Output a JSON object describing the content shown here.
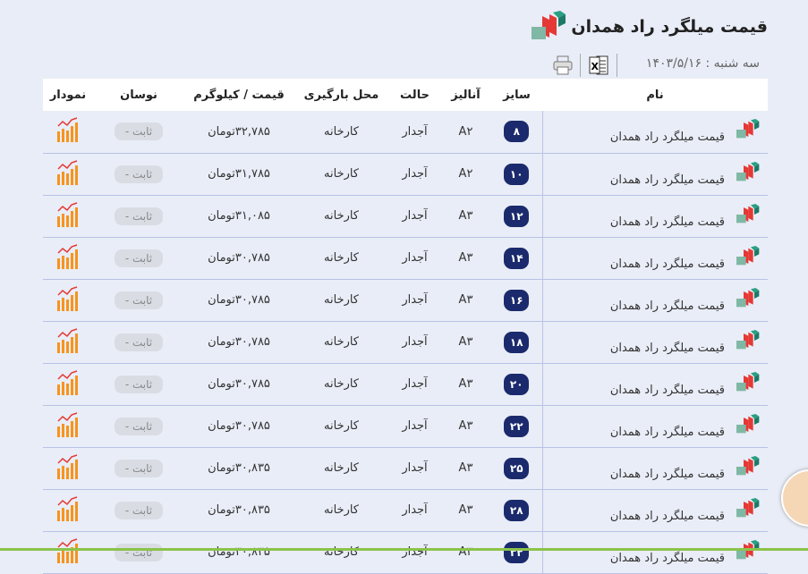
{
  "title": "قیمت میلگرد راد همدان",
  "date": "سه شنبه : ۱۴۰۳/۵/۱۶",
  "icons": {
    "logo": "rebar-logo-icon",
    "excel": "excel-icon",
    "print": "printer-icon",
    "chart": "bar-chart-icon"
  },
  "colors": {
    "size_badge": "#1a2a6c",
    "chart_icon": "#f7931e",
    "logo_red": "#e53935",
    "logo_green": "#1e7a66"
  },
  "headers": {
    "name": "نام",
    "size": "سایز",
    "analysis": "آنالیز",
    "state": "حالت",
    "place": "محل بارگیری",
    "price": "قیمت / کیلوگرم",
    "change": "نوسان",
    "chart": "نمودار"
  },
  "rows": [
    {
      "name": "قیمت میلگرد راد همدان",
      "size": "۸",
      "analysis": "A۲",
      "state": "آجدار",
      "place": "کارخانه",
      "price": "۳۲,۷۸۵تومان",
      "change": "ثابت -"
    },
    {
      "name": "قیمت میلگرد راد همدان",
      "size": "۱۰",
      "analysis": "A۲",
      "state": "آجدار",
      "place": "کارخانه",
      "price": "۳۱,۷۸۵تومان",
      "change": "ثابت -"
    },
    {
      "name": "قیمت میلگرد راد همدان",
      "size": "۱۲",
      "analysis": "A۳",
      "state": "آجدار",
      "place": "کارخانه",
      "price": "۳۱,۰۸۵تومان",
      "change": "ثابت -"
    },
    {
      "name": "قیمت میلگرد راد همدان",
      "size": "۱۴",
      "analysis": "A۳",
      "state": "آجدار",
      "place": "کارخانه",
      "price": "۳۰,۷۸۵تومان",
      "change": "ثابت -"
    },
    {
      "name": "قیمت میلگرد راد همدان",
      "size": "۱۶",
      "analysis": "A۳",
      "state": "آجدار",
      "place": "کارخانه",
      "price": "۳۰,۷۸۵تومان",
      "change": "ثابت -"
    },
    {
      "name": "قیمت میلگرد راد همدان",
      "size": "۱۸",
      "analysis": "A۳",
      "state": "آجدار",
      "place": "کارخانه",
      "price": "۳۰,۷۸۵تومان",
      "change": "ثابت -"
    },
    {
      "name": "قیمت میلگرد راد همدان",
      "size": "۲۰",
      "analysis": "A۳",
      "state": "آجدار",
      "place": "کارخانه",
      "price": "۳۰,۷۸۵تومان",
      "change": "ثابت -"
    },
    {
      "name": "قیمت میلگرد راد همدان",
      "size": "۲۲",
      "analysis": "A۳",
      "state": "آجدار",
      "place": "کارخانه",
      "price": "۳۰,۷۸۵تومان",
      "change": "ثابت -"
    },
    {
      "name": "قیمت میلگرد راد همدان",
      "size": "۲۵",
      "analysis": "A۳",
      "state": "آجدار",
      "place": "کارخانه",
      "price": "۳۰,۸۳۵تومان",
      "change": "ثابت -"
    },
    {
      "name": "قیمت میلگرد راد همدان",
      "size": "۲۸",
      "analysis": "A۳",
      "state": "آجدار",
      "place": "کارخانه",
      "price": "۳۰,۸۳۵تومان",
      "change": "ثابت -"
    },
    {
      "name": "قیمت میلگرد راد همدان",
      "size": "۳۲",
      "analysis": "A۳",
      "state": "آجدار",
      "place": "کارخانه",
      "price": "۳۰,۸۳۵تومان",
      "change": "ثابت -"
    }
  ]
}
